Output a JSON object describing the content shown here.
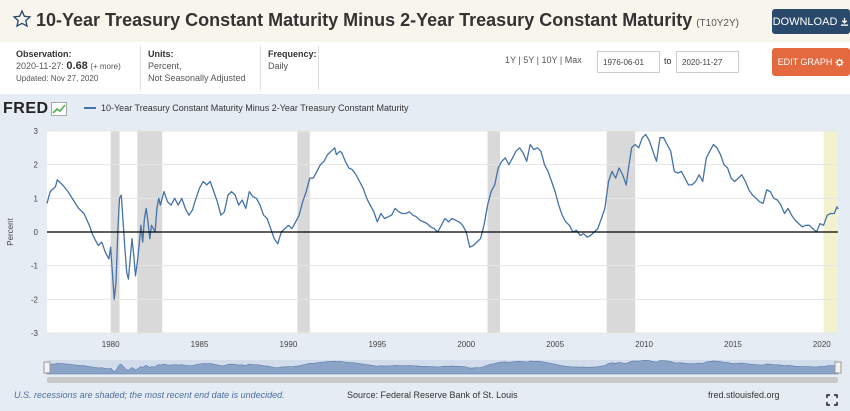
{
  "header": {
    "title": "10-Year Treasury Constant Maturity Minus 2-Year Treasury Constant Maturity",
    "series_code": "(T10Y2Y)",
    "download_label": "DOWNLOAD",
    "download_color": "#2a4a6b"
  },
  "meta": {
    "observation_label": "Observation:",
    "observation_date": "2020-11-27:",
    "observation_value": "0.68",
    "observation_more": "(+ more)",
    "updated": "Updated: Nov 27, 2020",
    "units_label": "Units:",
    "units_line1": "Percent,",
    "units_line2": "Not Seasonally Adjusted",
    "frequency_label": "Frequency:",
    "frequency_value": "Daily"
  },
  "controls": {
    "range_1y": "1Y",
    "range_5y": "5Y",
    "range_10y": "10Y",
    "range_max": "Max",
    "sep": "|",
    "date_from": "1976-06-01",
    "date_to_word": "to",
    "date_to": "2020-11-27",
    "edit_graph_label": "EDIT GRAPH",
    "edit_color": "#e4693f"
  },
  "chart": {
    "logo_text": "FRED",
    "legend_label": "10-Year Treasury Constant Maturity Minus 2-Year Treasury Constant Maturity",
    "y_axis_label": "Percent",
    "line_color": "#4572a7",
    "recession_color": "#d9d9d9"
  },
  "footer": {
    "note": "U.S. recessions are shaded; the most recent end date is undecided.",
    "source": "Source: Federal Reserve Bank of St. Louis",
    "url": "fred.stlouisfed.org"
  },
  "chart_data": {
    "type": "line",
    "ylabel": "Percent",
    "xlim": [
      1976.42,
      2020.91
    ],
    "ylim": [
      -3,
      3
    ],
    "y_ticks": [
      3,
      2,
      1,
      0,
      -1,
      -2,
      -3
    ],
    "x_ticks": [
      1980,
      1985,
      1990,
      1995,
      2000,
      2005,
      2010,
      2015,
      2020
    ],
    "recessions": [
      [
        1980.0,
        1980.5
      ],
      [
        1981.5,
        1982.9
      ],
      [
        1990.5,
        1991.2
      ],
      [
        2001.2,
        2001.9
      ],
      [
        2007.9,
        2009.5
      ],
      [
        2020.1,
        2020.91
      ]
    ],
    "series": [
      {
        "name": "10-Year Treasury Constant Maturity Minus 2-Year Treasury Constant Maturity",
        "points": [
          [
            1976.42,
            0.85
          ],
          [
            1976.6,
            1.2
          ],
          [
            1976.9,
            1.35
          ],
          [
            1977.0,
            1.55
          ],
          [
            1977.3,
            1.4
          ],
          [
            1977.6,
            1.2
          ],
          [
            1977.9,
            0.95
          ],
          [
            1978.2,
            0.7
          ],
          [
            1978.5,
            0.55
          ],
          [
            1978.8,
            0.2
          ],
          [
            1979.0,
            -0.1
          ],
          [
            1979.3,
            -0.4
          ],
          [
            1979.5,
            -0.3
          ],
          [
            1979.7,
            -0.6
          ],
          [
            1979.9,
            -0.8
          ],
          [
            1980.0,
            -0.45
          ],
          [
            1980.1,
            -1.2
          ],
          [
            1980.2,
            -2.0
          ],
          [
            1980.3,
            -1.5
          ],
          [
            1980.4,
            0.0
          ],
          [
            1980.5,
            1.0
          ],
          [
            1980.6,
            1.1
          ],
          [
            1980.7,
            0.3
          ],
          [
            1980.8,
            -0.5
          ],
          [
            1980.9,
            -1.2
          ],
          [
            1981.0,
            -1.4
          ],
          [
            1981.1,
            -0.8
          ],
          [
            1981.2,
            -0.2
          ],
          [
            1981.3,
            -0.7
          ],
          [
            1981.4,
            -1.3
          ],
          [
            1981.5,
            -0.9
          ],
          [
            1981.6,
            -0.4
          ],
          [
            1981.7,
            0.2
          ],
          [
            1981.8,
            -0.3
          ],
          [
            1981.9,
            0.4
          ],
          [
            1982.0,
            0.7
          ],
          [
            1982.1,
            0.3
          ],
          [
            1982.2,
            -0.2
          ],
          [
            1982.3,
            0.2
          ],
          [
            1982.5,
            0.0
          ],
          [
            1982.6,
            0.7
          ],
          [
            1982.7,
            1.0
          ],
          [
            1982.8,
            0.8
          ],
          [
            1982.9,
            1.0
          ],
          [
            1983.0,
            1.2
          ],
          [
            1983.2,
            0.9
          ],
          [
            1983.4,
            0.8
          ],
          [
            1983.6,
            1.0
          ],
          [
            1983.8,
            0.8
          ],
          [
            1984.0,
            1.0
          ],
          [
            1984.2,
            0.7
          ],
          [
            1984.4,
            0.5
          ],
          [
            1984.6,
            0.65
          ],
          [
            1984.8,
            1.0
          ],
          [
            1985.0,
            1.3
          ],
          [
            1985.2,
            1.5
          ],
          [
            1985.4,
            1.4
          ],
          [
            1985.6,
            1.5
          ],
          [
            1985.8,
            1.2
          ],
          [
            1986.0,
            0.9
          ],
          [
            1986.2,
            0.5
          ],
          [
            1986.4,
            0.6
          ],
          [
            1986.6,
            1.1
          ],
          [
            1986.8,
            1.2
          ],
          [
            1987.0,
            1.1
          ],
          [
            1987.2,
            0.8
          ],
          [
            1987.4,
            0.95
          ],
          [
            1987.6,
            0.7
          ],
          [
            1987.8,
            1.2
          ],
          [
            1988.0,
            1.05
          ],
          [
            1988.2,
            1.0
          ],
          [
            1988.4,
            0.8
          ],
          [
            1988.6,
            0.5
          ],
          [
            1988.8,
            0.4
          ],
          [
            1989.0,
            0.1
          ],
          [
            1989.2,
            -0.2
          ],
          [
            1989.4,
            -0.35
          ],
          [
            1989.6,
            0.0
          ],
          [
            1989.8,
            0.1
          ],
          [
            1990.0,
            0.2
          ],
          [
            1990.2,
            0.1
          ],
          [
            1990.4,
            0.3
          ],
          [
            1990.6,
            0.5
          ],
          [
            1990.8,
            0.9
          ],
          [
            1991.0,
            1.2
          ],
          [
            1991.2,
            1.6
          ],
          [
            1991.4,
            1.6
          ],
          [
            1991.6,
            1.8
          ],
          [
            1991.8,
            2.0
          ],
          [
            1992.0,
            2.1
          ],
          [
            1992.2,
            2.3
          ],
          [
            1992.4,
            2.4
          ],
          [
            1992.6,
            2.5
          ],
          [
            1992.7,
            2.3
          ],
          [
            1992.9,
            2.4
          ],
          [
            1993.0,
            2.35
          ],
          [
            1993.2,
            2.1
          ],
          [
            1993.4,
            1.9
          ],
          [
            1993.6,
            1.85
          ],
          [
            1993.8,
            1.7
          ],
          [
            1994.0,
            1.5
          ],
          [
            1994.2,
            1.3
          ],
          [
            1994.4,
            1.0
          ],
          [
            1994.6,
            0.8
          ],
          [
            1994.8,
            0.6
          ],
          [
            1995.0,
            0.3
          ],
          [
            1995.2,
            0.55
          ],
          [
            1995.4,
            0.4
          ],
          [
            1995.6,
            0.45
          ],
          [
            1995.8,
            0.5
          ],
          [
            1996.0,
            0.7
          ],
          [
            1996.2,
            0.6
          ],
          [
            1996.4,
            0.55
          ],
          [
            1996.6,
            0.55
          ],
          [
            1996.8,
            0.6
          ],
          [
            1997.0,
            0.5
          ],
          [
            1997.2,
            0.45
          ],
          [
            1997.4,
            0.35
          ],
          [
            1997.6,
            0.3
          ],
          [
            1997.8,
            0.25
          ],
          [
            1998.0,
            0.15
          ],
          [
            1998.2,
            0.1
          ],
          [
            1998.4,
            0.0
          ],
          [
            1998.6,
            0.2
          ],
          [
            1998.8,
            0.4
          ],
          [
            1999.0,
            0.3
          ],
          [
            1999.2,
            0.4
          ],
          [
            1999.4,
            0.35
          ],
          [
            1999.6,
            0.3
          ],
          [
            1999.8,
            0.2
          ],
          [
            2000.0,
            0.0
          ],
          [
            2000.2,
            -0.45
          ],
          [
            2000.4,
            -0.4
          ],
          [
            2000.6,
            -0.3
          ],
          [
            2000.8,
            -0.2
          ],
          [
            2001.0,
            0.2
          ],
          [
            2001.2,
            0.8
          ],
          [
            2001.4,
            1.2
          ],
          [
            2001.6,
            1.4
          ],
          [
            2001.8,
            1.9
          ],
          [
            2002.0,
            2.1
          ],
          [
            2002.2,
            2.2
          ],
          [
            2002.4,
            2.0
          ],
          [
            2002.6,
            2.2
          ],
          [
            2002.8,
            2.4
          ],
          [
            2003.0,
            2.5
          ],
          [
            2003.2,
            2.35
          ],
          [
            2003.4,
            2.1
          ],
          [
            2003.6,
            2.6
          ],
          [
            2003.8,
            2.45
          ],
          [
            2004.0,
            2.5
          ],
          [
            2004.2,
            2.4
          ],
          [
            2004.4,
            2.0
          ],
          [
            2004.6,
            1.8
          ],
          [
            2004.8,
            1.5
          ],
          [
            2005.0,
            1.2
          ],
          [
            2005.2,
            0.8
          ],
          [
            2005.4,
            0.5
          ],
          [
            2005.6,
            0.3
          ],
          [
            2005.8,
            0.2
          ],
          [
            2006.0,
            0.0
          ],
          [
            2006.2,
            0.05
          ],
          [
            2006.4,
            -0.1
          ],
          [
            2006.6,
            -0.05
          ],
          [
            2006.8,
            -0.15
          ],
          [
            2007.0,
            -0.1
          ],
          [
            2007.2,
            0.0
          ],
          [
            2007.4,
            0.1
          ],
          [
            2007.6,
            0.4
          ],
          [
            2007.8,
            0.7
          ],
          [
            2008.0,
            1.5
          ],
          [
            2008.2,
            1.8
          ],
          [
            2008.4,
            1.6
          ],
          [
            2008.6,
            1.9
          ],
          [
            2008.8,
            1.7
          ],
          [
            2009.0,
            1.4
          ],
          [
            2009.1,
            1.8
          ],
          [
            2009.3,
            2.5
          ],
          [
            2009.5,
            2.6
          ],
          [
            2009.7,
            2.5
          ],
          [
            2009.9,
            2.8
          ],
          [
            2010.1,
            2.9
          ],
          [
            2010.3,
            2.7
          ],
          [
            2010.5,
            2.4
          ],
          [
            2010.7,
            2.1
          ],
          [
            2010.9,
            2.8
          ],
          [
            2011.1,
            2.8
          ],
          [
            2011.3,
            2.6
          ],
          [
            2011.5,
            2.4
          ],
          [
            2011.7,
            1.8
          ],
          [
            2011.9,
            1.75
          ],
          [
            2012.1,
            1.8
          ],
          [
            2012.3,
            1.6
          ],
          [
            2012.5,
            1.4
          ],
          [
            2012.7,
            1.4
          ],
          [
            2012.9,
            1.5
          ],
          [
            2013.1,
            1.7
          ],
          [
            2013.3,
            1.5
          ],
          [
            2013.5,
            2.2
          ],
          [
            2013.7,
            2.4
          ],
          [
            2013.9,
            2.6
          ],
          [
            2014.1,
            2.5
          ],
          [
            2014.3,
            2.3
          ],
          [
            2014.5,
            2.0
          ],
          [
            2014.7,
            1.9
          ],
          [
            2014.9,
            1.6
          ],
          [
            2015.1,
            1.5
          ],
          [
            2015.3,
            1.6
          ],
          [
            2015.5,
            1.7
          ],
          [
            2015.7,
            1.5
          ],
          [
            2015.9,
            1.25
          ],
          [
            2016.1,
            1.1
          ],
          [
            2016.3,
            1.0
          ],
          [
            2016.5,
            0.9
          ],
          [
            2016.7,
            0.85
          ],
          [
            2016.9,
            1.25
          ],
          [
            2017.1,
            1.2
          ],
          [
            2017.3,
            1.0
          ],
          [
            2017.5,
            0.95
          ],
          [
            2017.7,
            0.8
          ],
          [
            2017.9,
            0.55
          ],
          [
            2018.1,
            0.7
          ],
          [
            2018.3,
            0.5
          ],
          [
            2018.5,
            0.35
          ],
          [
            2018.7,
            0.25
          ],
          [
            2018.9,
            0.15
          ],
          [
            2019.1,
            0.2
          ],
          [
            2019.3,
            0.2
          ],
          [
            2019.5,
            0.1
          ],
          [
            2019.7,
            0.0
          ],
          [
            2019.9,
            0.25
          ],
          [
            2020.1,
            0.2
          ],
          [
            2020.3,
            0.5
          ],
          [
            2020.5,
            0.55
          ],
          [
            2020.7,
            0.55
          ],
          [
            2020.85,
            0.75
          ],
          [
            2020.91,
            0.68
          ]
        ]
      }
    ]
  }
}
